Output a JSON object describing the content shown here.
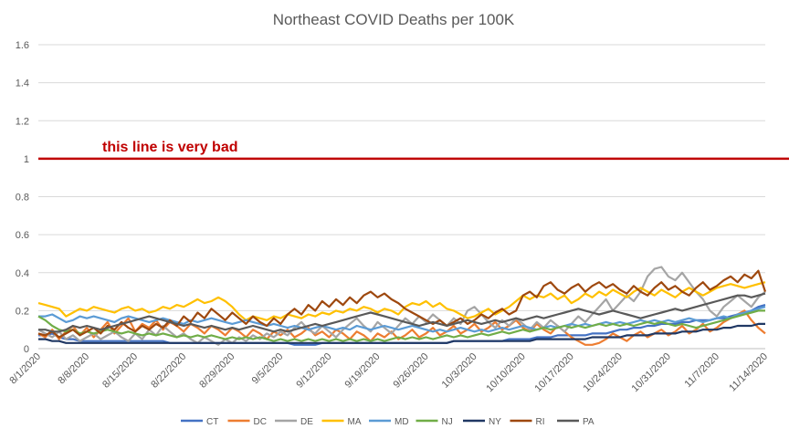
{
  "chart_data": {
    "type": "line",
    "title": "Northeast COVID Deaths per 100K",
    "xlabel": "",
    "ylabel": "",
    "ylim": [
      0,
      1.6
    ],
    "yticks": [
      "0",
      "0.2",
      "0.4",
      "0.6",
      "0.8",
      "1",
      "1.2",
      "1.4",
      "1.6"
    ],
    "x_start": "8/1/2020",
    "x_end": "11/14/2020",
    "xtick_labels": [
      "8/1/2020",
      "8/8/2020",
      "8/15/2020",
      "8/22/2020",
      "8/29/2020",
      "9/5/2020",
      "9/12/2020",
      "9/19/2020",
      "9/26/2020",
      "10/3/2020",
      "10/10/2020",
      "10/17/2020",
      "10/24/2020",
      "10/31/2020",
      "11/7/2020",
      "11/14/2020"
    ],
    "grid": true,
    "legend_position": "bottom",
    "reference_line": {
      "y": 1,
      "color": "#C00000",
      "label": "this line is very bad"
    },
    "series": [
      {
        "name": "CT",
        "color": "#4472C4",
        "values": [
          0.07,
          0.07,
          0.08,
          0.06,
          0.05,
          0.05,
          0.04,
          0.04,
          0.04,
          0.04,
          0.04,
          0.04,
          0.04,
          0.04,
          0.04,
          0.04,
          0.04,
          0.04,
          0.04,
          0.03,
          0.03,
          0.03,
          0.03,
          0.03,
          0.03,
          0.03,
          0.03,
          0.03,
          0.03,
          0.03,
          0.03,
          0.03,
          0.03,
          0.03,
          0.03,
          0.03,
          0.03,
          0.02,
          0.02,
          0.02,
          0.02,
          0.03,
          0.03,
          0.03,
          0.03,
          0.03,
          0.03,
          0.03,
          0.03,
          0.03,
          0.03,
          0.03,
          0.03,
          0.03,
          0.03,
          0.03,
          0.03,
          0.03,
          0.03,
          0.03,
          0.04,
          0.04,
          0.04,
          0.04,
          0.04,
          0.04,
          0.04,
          0.04,
          0.05,
          0.05,
          0.05,
          0.05,
          0.06,
          0.06,
          0.06,
          0.07,
          0.07,
          0.07,
          0.07,
          0.07,
          0.08,
          0.08,
          0.08,
          0.09,
          0.1,
          0.1,
          0.11,
          0.11,
          0.12,
          0.12,
          0.13,
          0.13,
          0.13,
          0.14,
          0.14,
          0.15,
          0.15,
          0.15,
          0.16,
          0.16,
          0.17,
          0.18,
          0.19,
          0.2,
          0.22,
          0.23
        ]
      },
      {
        "name": "DC",
        "color": "#ED7D31",
        "values": [
          0.08,
          0.06,
          0.1,
          0.05,
          0.09,
          0.12,
          0.07,
          0.11,
          0.06,
          0.1,
          0.14,
          0.08,
          0.12,
          0.16,
          0.09,
          0.13,
          0.11,
          0.15,
          0.1,
          0.14,
          0.12,
          0.09,
          0.13,
          0.11,
          0.08,
          0.12,
          0.1,
          0.07,
          0.11,
          0.09,
          0.06,
          0.1,
          0.08,
          0.05,
          0.09,
          0.07,
          0.1,
          0.06,
          0.08,
          0.11,
          0.07,
          0.09,
          0.06,
          0.1,
          0.08,
          0.05,
          0.09,
          0.07,
          0.04,
          0.08,
          0.06,
          0.09,
          0.05,
          0.07,
          0.1,
          0.06,
          0.08,
          0.11,
          0.07,
          0.09,
          0.12,
          0.08,
          0.1,
          0.13,
          0.09,
          0.11,
          0.14,
          0.1,
          0.12,
          0.15,
          0.11,
          0.09,
          0.13,
          0.1,
          0.08,
          0.12,
          0.09,
          0.06,
          0.04,
          0.02,
          0.02,
          0.03,
          0.05,
          0.08,
          0.06,
          0.04,
          0.07,
          0.09,
          0.06,
          0.08,
          0.1,
          0.07,
          0.09,
          0.12,
          0.08,
          0.1,
          0.13,
          0.09,
          0.11,
          0.14,
          0.16,
          0.18,
          0.2,
          0.15,
          0.11,
          0.08
        ]
      },
      {
        "name": "DE",
        "color": "#A5A5A5",
        "values": [
          0.1,
          0.08,
          0.06,
          0.09,
          0.05,
          0.07,
          0.04,
          0.06,
          0.08,
          0.05,
          0.07,
          0.09,
          0.06,
          0.04,
          0.08,
          0.05,
          0.1,
          0.07,
          0.12,
          0.09,
          0.06,
          0.08,
          0.05,
          0.03,
          0.06,
          0.04,
          0.02,
          0.05,
          0.03,
          0.06,
          0.04,
          0.07,
          0.05,
          0.08,
          0.06,
          0.09,
          0.07,
          0.11,
          0.14,
          0.1,
          0.08,
          0.12,
          0.09,
          0.06,
          0.1,
          0.13,
          0.16,
          0.12,
          0.09,
          0.14,
          0.11,
          0.08,
          0.12,
          0.16,
          0.13,
          0.17,
          0.14,
          0.18,
          0.15,
          0.12,
          0.16,
          0.13,
          0.2,
          0.22,
          0.18,
          0.14,
          0.11,
          0.15,
          0.12,
          0.16,
          0.13,
          0.1,
          0.14,
          0.11,
          0.15,
          0.12,
          0.09,
          0.13,
          0.17,
          0.14,
          0.18,
          0.22,
          0.26,
          0.2,
          0.24,
          0.28,
          0.25,
          0.3,
          0.38,
          0.42,
          0.43,
          0.38,
          0.36,
          0.4,
          0.35,
          0.3,
          0.26,
          0.2,
          0.17,
          0.22,
          0.25,
          0.28,
          0.25,
          0.22,
          0.27,
          0.3
        ]
      },
      {
        "name": "MA",
        "color": "#FFC000",
        "values": [
          0.24,
          0.23,
          0.22,
          0.21,
          0.17,
          0.19,
          0.21,
          0.2,
          0.22,
          0.21,
          0.2,
          0.19,
          0.21,
          0.22,
          0.2,
          0.21,
          0.19,
          0.2,
          0.22,
          0.21,
          0.23,
          0.22,
          0.24,
          0.26,
          0.24,
          0.25,
          0.27,
          0.25,
          0.22,
          0.18,
          0.15,
          0.17,
          0.16,
          0.15,
          0.17,
          0.16,
          0.18,
          0.17,
          0.16,
          0.18,
          0.17,
          0.19,
          0.18,
          0.2,
          0.19,
          0.21,
          0.2,
          0.22,
          0.21,
          0.19,
          0.21,
          0.2,
          0.18,
          0.22,
          0.24,
          0.23,
          0.25,
          0.22,
          0.24,
          0.21,
          0.2,
          0.18,
          0.16,
          0.17,
          0.19,
          0.21,
          0.18,
          0.2,
          0.22,
          0.25,
          0.28,
          0.26,
          0.28,
          0.27,
          0.29,
          0.26,
          0.28,
          0.24,
          0.26,
          0.29,
          0.27,
          0.3,
          0.28,
          0.31,
          0.29,
          0.27,
          0.3,
          0.32,
          0.3,
          0.28,
          0.31,
          0.29,
          0.27,
          0.3,
          0.32,
          0.3,
          0.28,
          0.3,
          0.32,
          0.33,
          0.34,
          0.33,
          0.32,
          0.33,
          0.34,
          0.35
        ]
      },
      {
        "name": "MD",
        "color": "#5B9BD5",
        "values": [
          0.17,
          0.17,
          0.18,
          0.16,
          0.14,
          0.15,
          0.17,
          0.16,
          0.17,
          0.16,
          0.15,
          0.14,
          0.16,
          0.17,
          0.16,
          0.15,
          0.14,
          0.15,
          0.16,
          0.15,
          0.14,
          0.13,
          0.15,
          0.14,
          0.15,
          0.16,
          0.15,
          0.14,
          0.13,
          0.14,
          0.15,
          0.14,
          0.13,
          0.12,
          0.13,
          0.12,
          0.11,
          0.12,
          0.11,
          0.1,
          0.11,
          0.12,
          0.11,
          0.1,
          0.11,
          0.1,
          0.12,
          0.11,
          0.1,
          0.11,
          0.12,
          0.11,
          0.1,
          0.11,
          0.12,
          0.11,
          0.1,
          0.09,
          0.1,
          0.09,
          0.1,
          0.11,
          0.1,
          0.09,
          0.1,
          0.09,
          0.1,
          0.11,
          0.1,
          0.11,
          0.12,
          0.11,
          0.1,
          0.11,
          0.12,
          0.11,
          0.12,
          0.13,
          0.12,
          0.13,
          0.12,
          0.13,
          0.14,
          0.13,
          0.14,
          0.13,
          0.14,
          0.15,
          0.14,
          0.15,
          0.14,
          0.15,
          0.14,
          0.15,
          0.16,
          0.15,
          0.14,
          0.15,
          0.16,
          0.17,
          0.16,
          0.18,
          0.19,
          0.2,
          0.21,
          0.22
        ]
      },
      {
        "name": "NJ",
        "color": "#70AD47",
        "values": [
          0.17,
          0.15,
          0.12,
          0.1,
          0.09,
          0.1,
          0.08,
          0.09,
          0.08,
          0.09,
          0.1,
          0.09,
          0.08,
          0.09,
          0.08,
          0.07,
          0.08,
          0.07,
          0.08,
          0.07,
          0.06,
          0.07,
          0.06,
          0.07,
          0.06,
          0.07,
          0.06,
          0.05,
          0.06,
          0.05,
          0.06,
          0.05,
          0.06,
          0.05,
          0.04,
          0.05,
          0.04,
          0.05,
          0.04,
          0.05,
          0.04,
          0.05,
          0.04,
          0.05,
          0.04,
          0.05,
          0.04,
          0.05,
          0.04,
          0.05,
          0.04,
          0.05,
          0.06,
          0.05,
          0.06,
          0.05,
          0.06,
          0.05,
          0.06,
          0.07,
          0.06,
          0.07,
          0.06,
          0.07,
          0.08,
          0.07,
          0.08,
          0.09,
          0.08,
          0.09,
          0.1,
          0.09,
          0.1,
          0.11,
          0.1,
          0.11,
          0.12,
          0.11,
          0.12,
          0.11,
          0.12,
          0.13,
          0.12,
          0.13,
          0.12,
          0.13,
          0.12,
          0.13,
          0.14,
          0.13,
          0.14,
          0.13,
          0.12,
          0.13,
          0.12,
          0.11,
          0.12,
          0.13,
          0.14,
          0.15,
          0.16,
          0.17,
          0.18,
          0.19,
          0.2,
          0.2
        ]
      },
      {
        "name": "NY",
        "color": "#203864",
        "values": [
          0.05,
          0.05,
          0.04,
          0.04,
          0.03,
          0.03,
          0.03,
          0.03,
          0.03,
          0.03,
          0.03,
          0.03,
          0.03,
          0.03,
          0.03,
          0.03,
          0.03,
          0.03,
          0.03,
          0.03,
          0.03,
          0.03,
          0.03,
          0.03,
          0.03,
          0.03,
          0.03,
          0.03,
          0.03,
          0.03,
          0.03,
          0.03,
          0.03,
          0.03,
          0.03,
          0.03,
          0.03,
          0.03,
          0.03,
          0.03,
          0.03,
          0.03,
          0.03,
          0.03,
          0.03,
          0.03,
          0.03,
          0.03,
          0.03,
          0.03,
          0.03,
          0.03,
          0.03,
          0.03,
          0.03,
          0.03,
          0.03,
          0.03,
          0.03,
          0.03,
          0.04,
          0.04,
          0.04,
          0.04,
          0.04,
          0.04,
          0.04,
          0.04,
          0.04,
          0.04,
          0.04,
          0.04,
          0.05,
          0.05,
          0.05,
          0.05,
          0.05,
          0.05,
          0.05,
          0.05,
          0.06,
          0.06,
          0.06,
          0.06,
          0.06,
          0.07,
          0.07,
          0.07,
          0.07,
          0.08,
          0.08,
          0.08,
          0.08,
          0.09,
          0.09,
          0.09,
          0.1,
          0.1,
          0.1,
          0.11,
          0.11,
          0.12,
          0.12,
          0.12,
          0.13,
          0.13
        ]
      },
      {
        "name": "RI",
        "color": "#9E480E",
        "values": [
          0.08,
          0.07,
          0.09,
          0.06,
          0.08,
          0.1,
          0.07,
          0.09,
          0.11,
          0.08,
          0.12,
          0.1,
          0.14,
          0.11,
          0.09,
          0.12,
          0.1,
          0.13,
          0.11,
          0.15,
          0.12,
          0.17,
          0.14,
          0.19,
          0.16,
          0.21,
          0.18,
          0.15,
          0.19,
          0.16,
          0.13,
          0.17,
          0.14,
          0.12,
          0.16,
          0.13,
          0.18,
          0.21,
          0.18,
          0.23,
          0.2,
          0.25,
          0.22,
          0.26,
          0.23,
          0.27,
          0.24,
          0.28,
          0.3,
          0.27,
          0.29,
          0.26,
          0.24,
          0.21,
          0.19,
          0.17,
          0.15,
          0.13,
          0.15,
          0.12,
          0.14,
          0.16,
          0.13,
          0.15,
          0.18,
          0.16,
          0.19,
          0.21,
          0.18,
          0.2,
          0.28,
          0.3,
          0.27,
          0.33,
          0.35,
          0.31,
          0.29,
          0.32,
          0.34,
          0.3,
          0.33,
          0.35,
          0.32,
          0.34,
          0.31,
          0.29,
          0.33,
          0.3,
          0.28,
          0.32,
          0.35,
          0.31,
          0.33,
          0.3,
          0.28,
          0.32,
          0.35,
          0.31,
          0.33,
          0.36,
          0.38,
          0.35,
          0.39,
          0.37,
          0.41,
          0.3
        ]
      },
      {
        "name": "PA",
        "color": "#595959",
        "values": [
          0.1,
          0.1,
          0.09,
          0.09,
          0.1,
          0.12,
          0.11,
          0.12,
          0.11,
          0.1,
          0.11,
          0.12,
          0.13,
          0.14,
          0.15,
          0.16,
          0.17,
          0.16,
          0.15,
          0.14,
          0.13,
          0.12,
          0.13,
          0.12,
          0.11,
          0.12,
          0.11,
          0.1,
          0.11,
          0.1,
          0.11,
          0.12,
          0.11,
          0.1,
          0.09,
          0.1,
          0.09,
          0.1,
          0.11,
          0.12,
          0.13,
          0.12,
          0.13,
          0.14,
          0.15,
          0.16,
          0.17,
          0.18,
          0.19,
          0.18,
          0.17,
          0.16,
          0.15,
          0.14,
          0.13,
          0.12,
          0.13,
          0.14,
          0.13,
          0.12,
          0.13,
          0.14,
          0.15,
          0.14,
          0.13,
          0.14,
          0.15,
          0.14,
          0.15,
          0.16,
          0.15,
          0.16,
          0.17,
          0.16,
          0.17,
          0.18,
          0.19,
          0.2,
          0.21,
          0.2,
          0.19,
          0.18,
          0.19,
          0.2,
          0.19,
          0.18,
          0.17,
          0.16,
          0.17,
          0.18,
          0.19,
          0.2,
          0.21,
          0.2,
          0.21,
          0.22,
          0.23,
          0.24,
          0.25,
          0.26,
          0.27,
          0.28,
          0.28,
          0.27,
          0.28,
          0.29
        ]
      }
    ]
  }
}
